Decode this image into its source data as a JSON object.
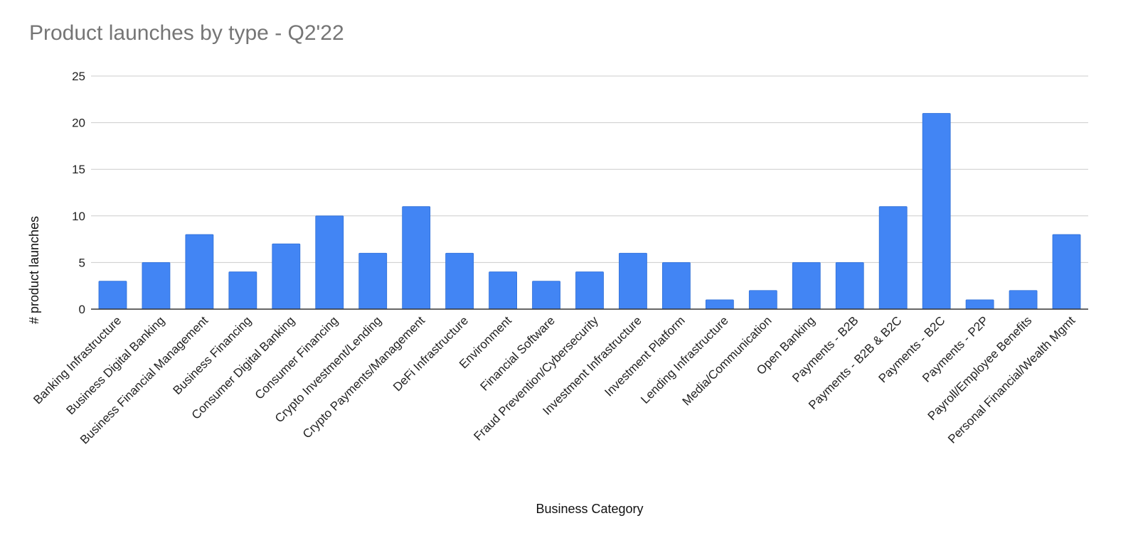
{
  "chart_data": {
    "type": "bar",
    "title": "Product launches by type - Q2'22",
    "xlabel": "Business Category",
    "ylabel": "# product launches",
    "ylim": [
      0,
      25
    ],
    "yticks": [
      0,
      5,
      10,
      15,
      20,
      25
    ],
    "grid": true,
    "legend": "none",
    "bar_color": "#4285f4",
    "categories": [
      "Banking Infrastructure",
      "Business Digital Banking",
      "Business Financial Management",
      "Business Financing",
      "Consumer Digital Banking",
      "Consumer Financing",
      "Crypto Investment/Lending",
      "Crypto Payments/Management",
      "DeFi Infrastructure",
      "Environment",
      "Financial Software",
      "Fraud Prevention/Cybersecurity",
      "Investment Infrastructure",
      "Investment Platform",
      "Lending Infrastructure",
      "Media/Communication",
      "Open Banking",
      "Payments - B2B",
      "Payments - B2B & B2C",
      "Payments - B2C",
      "Payments - P2P",
      "Payroll/Employee Benefits",
      "Personal Financial/Wealth Mgmt"
    ],
    "values": [
      3,
      5,
      8,
      4,
      7,
      10,
      6,
      11,
      6,
      4,
      3,
      4,
      6,
      5,
      1,
      2,
      5,
      5,
      11,
      21,
      1,
      2,
      8
    ]
  }
}
